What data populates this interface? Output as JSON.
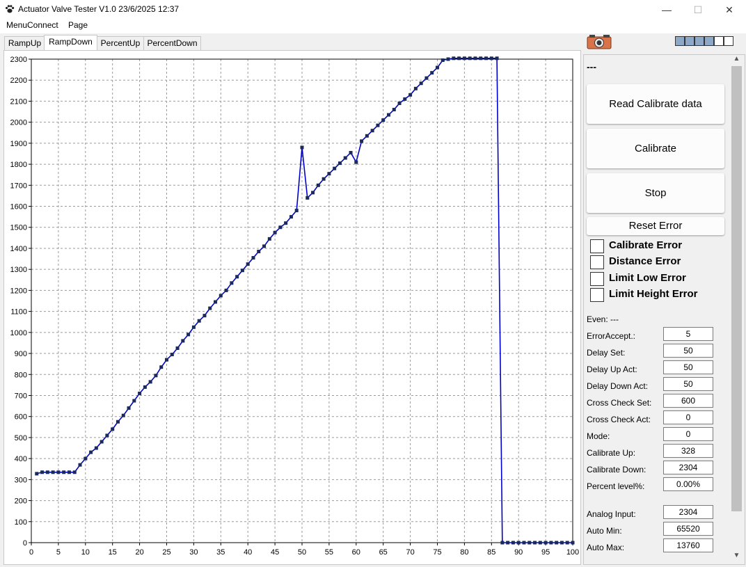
{
  "window": {
    "title": "Actuator Valve Tester V1.0 23/6/2025 12:37",
    "minimize": "—",
    "maximize": "☐",
    "close": "✕"
  },
  "menu": [
    "MenuConnect",
    "Page"
  ],
  "tabs": [
    "RampUp",
    "RampDown",
    "PercentUp",
    "PercentDown"
  ],
  "status": {
    "dash": "---"
  },
  "leds": [
    {
      "color": "#8ea8c8"
    },
    {
      "color": "#8ea8c8"
    },
    {
      "color": "#8ea8c8"
    },
    {
      "color": "#8ea8c8"
    },
    {
      "color": "#ffffff"
    },
    {
      "color": "#ffffff"
    }
  ],
  "buttons": {
    "read_calibrate": "Read Calibrate data",
    "calibrate": "Calibrate",
    "stop": "Stop",
    "reset_error": "Reset Error"
  },
  "errors": [
    "Calibrate Error",
    "Distance Error",
    "Limit Low Error",
    "Limit Height Error"
  ],
  "even": "Even: ---",
  "fields": [
    {
      "label": "ErrorAccept.:",
      "value": "5"
    },
    {
      "label": "Delay Set:",
      "value": "50"
    },
    {
      "label": "Delay Up Act:",
      "value": "50"
    },
    {
      "label": "Delay Down Act:",
      "value": "50"
    },
    {
      "label": "Cross Check Set:",
      "value": "600"
    },
    {
      "label": "Cross Check Act:",
      "value": "0"
    },
    {
      "label": "Mode:",
      "value": "0"
    },
    {
      "label": "Calibrate Up:",
      "value": "328"
    },
    {
      "label": "Calibrate Down:",
      "value": "2304"
    },
    {
      "label": "Percent level%:",
      "value": "0.00%"
    }
  ],
  "fields2": [
    {
      "label": "Analog Input:",
      "value": "2304"
    },
    {
      "label": "Auto Min:",
      "value": "65520"
    },
    {
      "label": "Auto Max:",
      "value": "13760"
    }
  ],
  "chart_data": {
    "type": "line",
    "title": "",
    "xlabel": "",
    "ylabel": "",
    "xlim": [
      0,
      100
    ],
    "ylim": [
      0,
      2300
    ],
    "xticks": [
      0,
      5,
      10,
      15,
      20,
      25,
      30,
      35,
      40,
      45,
      50,
      55,
      60,
      65,
      70,
      75,
      80,
      85,
      90,
      95,
      100
    ],
    "yticks": [
      0,
      100,
      200,
      300,
      400,
      500,
      600,
      700,
      800,
      900,
      1000,
      1100,
      1200,
      1300,
      1400,
      1500,
      1600,
      1700,
      1800,
      1900,
      2000,
      2100,
      2200,
      2300
    ],
    "grid": true,
    "series": [
      {
        "name": "RampDown",
        "color": "#0000cc",
        "x": [
          1,
          2,
          3,
          4,
          5,
          6,
          7,
          8,
          9,
          10,
          11,
          12,
          13,
          14,
          15,
          16,
          17,
          18,
          19,
          20,
          21,
          22,
          23,
          24,
          25,
          26,
          27,
          28,
          29,
          30,
          31,
          32,
          33,
          34,
          35,
          36,
          37,
          38,
          39,
          40,
          41,
          42,
          43,
          44,
          45,
          46,
          47,
          48,
          49,
          50,
          51,
          52,
          53,
          54,
          55,
          56,
          57,
          58,
          59,
          60,
          61,
          62,
          63,
          64,
          65,
          66,
          67,
          68,
          69,
          70,
          71,
          72,
          73,
          74,
          75,
          76,
          77,
          78,
          79,
          80,
          81,
          82,
          83,
          84,
          85,
          86,
          87,
          88,
          89,
          90,
          91,
          92,
          93,
          94,
          95,
          96,
          97,
          98,
          99,
          100
        ],
        "y": [
          328,
          335,
          335,
          335,
          335,
          335,
          335,
          335,
          370,
          400,
          430,
          450,
          480,
          510,
          540,
          575,
          605,
          640,
          675,
          710,
          740,
          765,
          795,
          835,
          870,
          895,
          925,
          960,
          990,
          1025,
          1055,
          1080,
          1115,
          1145,
          1175,
          1200,
          1235,
          1265,
          1295,
          1325,
          1355,
          1385,
          1410,
          1445,
          1475,
          1500,
          1520,
          1550,
          1580,
          1880,
          1640,
          1665,
          1700,
          1730,
          1755,
          1780,
          1805,
          1830,
          1855,
          1810,
          1910,
          1935,
          1960,
          1985,
          2010,
          2035,
          2060,
          2090,
          2110,
          2130,
          2160,
          2185,
          2210,
          2235,
          2260,
          2295,
          2300,
          2304,
          2304,
          2304,
          2304,
          2304,
          2304,
          2304,
          2304,
          2304,
          0,
          0,
          0,
          0,
          0,
          0,
          0,
          0,
          0,
          0,
          0,
          0,
          0,
          0
        ]
      }
    ]
  }
}
